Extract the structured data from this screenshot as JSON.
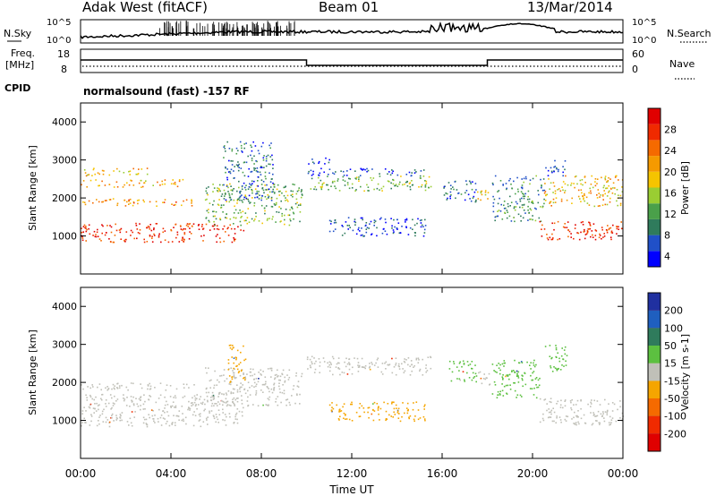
{
  "header": {
    "station": "Adak West (fitACF)",
    "beam": "Beam 01",
    "date": "13/Mar/2014"
  },
  "strips": {
    "nsky_label": "N.Sky",
    "nsearch_label": "N.Search",
    "nsky_ticks": [
      "10^5",
      "10^0"
    ],
    "freq_label": "Freq.",
    "freq_unit": "[MHz]",
    "freq_ticks": [
      "18",
      "8"
    ],
    "nave_label": "Nave",
    "nave_ticks": [
      "60",
      "0"
    ],
    "cpid_label": "CPID",
    "cpid_text": "normalsound (fast) -157 RF"
  },
  "colors": {
    "frame": "#000000",
    "background": "#ffffff",
    "ground_scatter": "#c0c0b8"
  },
  "chart_data": [
    {
      "type": "heatmap",
      "name": "power",
      "ylabel": "Slant Range [km]",
      "ylim": [
        0,
        4500
      ],
      "yticks": [
        1000,
        2000,
        3000,
        4000
      ],
      "xlim": [
        0,
        24
      ],
      "colorbar": {
        "label": "Power [dB]",
        "ticks": [
          4,
          8,
          12,
          16,
          20,
          24,
          28
        ],
        "colors": [
          "#0000ff",
          "#2050c8",
          "#2f7b5c",
          "#4aa04a",
          "#9acd32",
          "#f5c400",
          "#f59a00",
          "#f56a00",
          "#f02a00",
          "#e00000"
        ]
      },
      "regions": [
        {
          "t": [
            0,
            7.2
          ],
          "r": [
            850,
            1350
          ],
          "val": 28
        },
        {
          "t": [
            0,
            5.0
          ],
          "r": [
            1800,
            2000
          ],
          "val": 22
        },
        {
          "t": [
            0,
            4.5
          ],
          "r": [
            2300,
            2500
          ],
          "val": 21
        },
        {
          "t": [
            0,
            3.0
          ],
          "r": [
            2600,
            2800
          ],
          "val": 20
        },
        {
          "t": [
            5.5,
            9.8
          ],
          "r": [
            1300,
            2400
          ],
          "val": 14
        },
        {
          "t": [
            6.3,
            8.5
          ],
          "r": [
            1900,
            3500
          ],
          "val": 8
        },
        {
          "t": [
            10.0,
            15.5
          ],
          "r": [
            2200,
            2600
          ],
          "val": 14
        },
        {
          "t": [
            10.0,
            15.2
          ],
          "r": [
            2600,
            2800
          ],
          "val": 6
        },
        {
          "t": [
            11.0,
            15.3
          ],
          "r": [
            1000,
            1500
          ],
          "val": 6
        },
        {
          "t": [
            10.0,
            11.0
          ],
          "r": [
            2900,
            3100
          ],
          "val": 6
        },
        {
          "t": [
            16.0,
            17.5
          ],
          "r": [
            1900,
            2500
          ],
          "val": 8
        },
        {
          "t": [
            17.5,
            18.1
          ],
          "r": [
            1900,
            2300
          ],
          "val": 20
        },
        {
          "t": [
            18.2,
            20.5
          ],
          "r": [
            1400,
            2600
          ],
          "val": 10
        },
        {
          "t": [
            20.2,
            24.0
          ],
          "r": [
            900,
            1400
          ],
          "val": 28
        },
        {
          "t": [
            20.5,
            24.0
          ],
          "r": [
            1800,
            2600
          ],
          "val": 20
        },
        {
          "t": [
            20.5,
            21.5
          ],
          "r": [
            2600,
            3000
          ],
          "val": 6
        }
      ]
    },
    {
      "type": "heatmap",
      "name": "velocity",
      "ylabel": "Slant Range [km]",
      "xlabel": "Time UT",
      "ylim": [
        0,
        4500
      ],
      "yticks": [
        1000,
        2000,
        3000,
        4000
      ],
      "xlim": [
        0,
        24
      ],
      "xticks": [
        "00:00",
        "04:00",
        "08:00",
        "12:00",
        "16:00",
        "20:00",
        "00:00"
      ],
      "colorbar": {
        "label": "Velocity [m s-1]",
        "ticks": [
          200,
          100,
          50,
          15,
          -15,
          -50,
          -100,
          -200
        ],
        "colors": [
          "#2030a0",
          "#1f5fbf",
          "#2f7b5c",
          "#5cc040",
          "#c0c0b8",
          "#f5a500",
          "#f56a00",
          "#f02a00",
          "#e00000"
        ]
      },
      "regions": [
        {
          "t": [
            0,
            7.2
          ],
          "r": [
            850,
            1700
          ],
          "val": 0
        },
        {
          "t": [
            0,
            5.0
          ],
          "r": [
            1800,
            2000
          ],
          "val": 0
        },
        {
          "t": [
            5.5,
            9.8
          ],
          "r": [
            1400,
            2400
          ],
          "val": 0
        },
        {
          "t": [
            6.5,
            7.3
          ],
          "r": [
            2000,
            3000
          ],
          "val": -40
        },
        {
          "t": [
            10.0,
            15.5
          ],
          "r": [
            2200,
            2700
          ],
          "val": 0
        },
        {
          "t": [
            11.0,
            15.3
          ],
          "r": [
            1000,
            1500
          ],
          "val": -40
        },
        {
          "t": [
            16.3,
            17.5
          ],
          "r": [
            2000,
            2600
          ],
          "val": 30
        },
        {
          "t": [
            17.5,
            18.1
          ],
          "r": [
            1900,
            2300
          ],
          "val": 0
        },
        {
          "t": [
            18.2,
            20.3
          ],
          "r": [
            1600,
            2600
          ],
          "val": 30
        },
        {
          "t": [
            20.3,
            24.0
          ],
          "r": [
            900,
            1600
          ],
          "val": 0
        },
        {
          "t": [
            20.5,
            21.5
          ],
          "r": [
            2300,
            3000
          ],
          "val": 30
        }
      ]
    }
  ]
}
